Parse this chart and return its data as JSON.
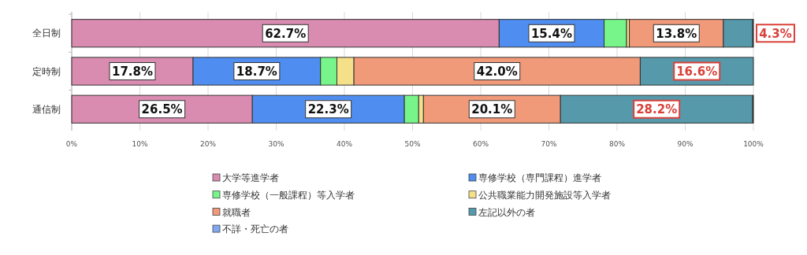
{
  "chart_data": {
    "type": "bar",
    "orientation": "horizontal",
    "stacked": true,
    "categories": [
      "全日制",
      "定時制",
      "通信制"
    ],
    "series": [
      {
        "name": "大学等進学者",
        "color": "#d98cb0",
        "values": [
          62.7,
          17.8,
          26.5
        ],
        "value_labels": [
          "62.7%",
          "17.8%",
          "26.5%"
        ]
      },
      {
        "name": "専修学校（専門課程）進学者",
        "color": "#4f8ef0",
        "values": [
          15.4,
          18.7,
          22.3
        ],
        "value_labels": [
          "15.4%",
          "18.7%",
          "22.3%"
        ]
      },
      {
        "name": "専修学校（一般課程）等入学者",
        "color": "#77f58a",
        "values": [
          3.3,
          2.4,
          2.1
        ],
        "value_labels": [
          null,
          null,
          null
        ]
      },
      {
        "name": "公共職業能力開発施設等入学者",
        "color": "#f5e08a",
        "values": [
          0.4,
          2.5,
          0.7
        ],
        "value_labels": [
          null,
          null,
          null
        ]
      },
      {
        "name": "就職者",
        "color": "#f09a7a",
        "values": [
          13.8,
          42.0,
          20.1
        ],
        "value_labels": [
          "13.8%",
          "42.0%",
          "20.1%"
        ]
      },
      {
        "name": "左記以外の者",
        "color": "#5599ab",
        "values": [
          4.3,
          16.6,
          28.2
        ],
        "value_labels": [
          "4.3%",
          "16.6%",
          "28.2%"
        ]
      },
      {
        "name": "不詳・死亡の者",
        "color": "#7fa8f0",
        "values": [
          0.1,
          0,
          0.1
        ],
        "value_labels": [
          null,
          null,
          null
        ]
      }
    ],
    "xlim": [
      0,
      100
    ],
    "xticks": [
      {
        "value": 0,
        "label": "0%"
      },
      {
        "value": 10,
        "label": "10%"
      },
      {
        "value": 20,
        "label": "20%"
      },
      {
        "value": 30,
        "label": "30%"
      },
      {
        "value": 40,
        "label": "40%"
      },
      {
        "value": 50,
        "label": "50%"
      },
      {
        "value": 60,
        "label": "60%"
      },
      {
        "value": 70,
        "label": "70%"
      },
      {
        "value": 80,
        "label": "80%"
      },
      {
        "value": 90,
        "label": "90%"
      },
      {
        "value": 100,
        "label": "100%"
      }
    ],
    "grid": "x",
    "legend": "bottom"
  }
}
